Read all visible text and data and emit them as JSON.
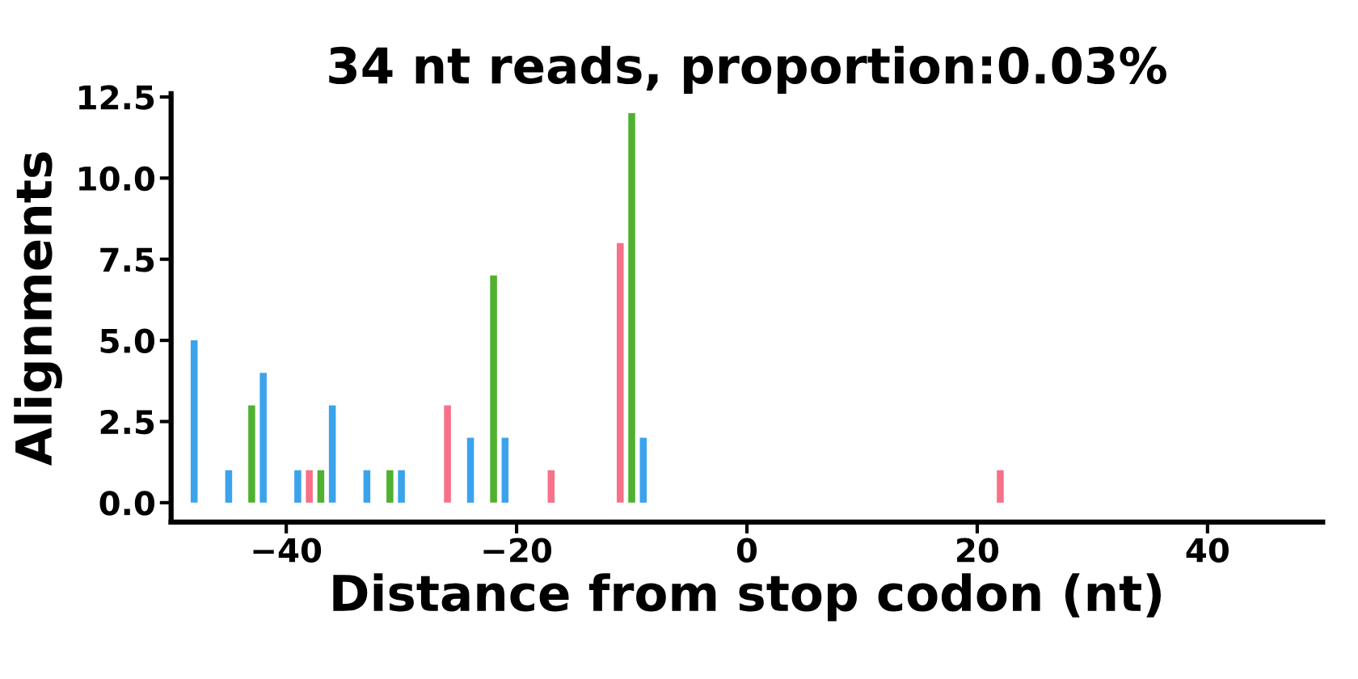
{
  "chart_data": {
    "type": "bar",
    "title": "34 nt reads, proportion:0.03%",
    "xlabel": "Distance from stop codon (nt)",
    "ylabel": "Alignments",
    "xlim": [
      -50,
      50
    ],
    "xticks": [
      {
        "value": -40,
        "label": "−40"
      },
      {
        "value": -20,
        "label": "−20"
      },
      0,
      20,
      40
    ],
    "ylim": [
      -0.6,
      12.6
    ],
    "yticks": [
      {
        "value": 0,
        "label": "0.0"
      },
      2.5,
      {
        "value": 5,
        "label": "5.0"
      },
      7.5,
      {
        "value": 10,
        "label": "10.0"
      },
      12.5
    ],
    "series": [
      {
        "color": "#f77189",
        "x": [
          -38,
          -26,
          -17,
          -11,
          22
        ],
        "values": [
          1,
          3,
          1,
          8,
          1
        ]
      },
      {
        "color": "#50b131",
        "x": [
          -43,
          -37,
          -31,
          -22,
          -10
        ],
        "values": [
          3,
          1,
          1,
          7,
          12
        ]
      },
      {
        "color": "#3ba3ec",
        "x": [
          -48,
          -45,
          -42,
          -39,
          -36,
          -33,
          -30,
          -24,
          -21,
          -9
        ],
        "values": [
          5,
          1,
          4,
          1,
          3,
          1,
          1,
          2,
          2,
          2
        ]
      }
    ]
  }
}
